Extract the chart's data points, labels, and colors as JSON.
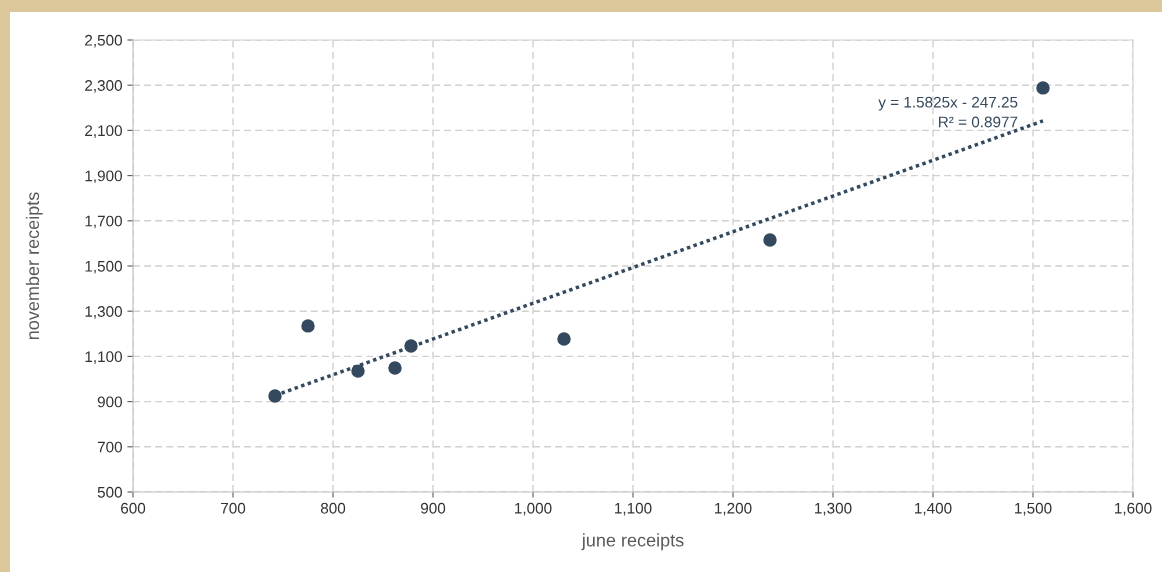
{
  "chart_data": {
    "type": "scatter",
    "xlabel": "june receipts",
    "ylabel": "november receipts",
    "xlim": [
      600,
      1600
    ],
    "xticks": [
      600,
      700,
      800,
      900,
      {
        "value": 1000,
        "label": "1,000"
      },
      {
        "value": 1100,
        "label": "1,100"
      },
      {
        "value": 1200,
        "label": "1,200"
      },
      {
        "value": 1300,
        "label": "1,300"
      },
      {
        "value": 1400,
        "label": "1,400"
      },
      {
        "value": 1500,
        "label": "1,500"
      },
      {
        "value": 1600,
        "label": "1,600"
      }
    ],
    "ylim": [
      500,
      2500
    ],
    "yticks": [
      500,
      700,
      900,
      {
        "value": 1100,
        "label": "1,100"
      },
      {
        "value": 1300,
        "label": "1,300"
      },
      {
        "value": 1500,
        "label": "1,500"
      },
      {
        "value": 1700,
        "label": "1,700"
      },
      {
        "value": 1900,
        "label": "1,900"
      },
      {
        "value": 2100,
        "label": "2,100"
      },
      {
        "value": 2300,
        "label": "2,300"
      },
      {
        "value": 2500,
        "label": "2,500"
      }
    ],
    "grid": true,
    "series": [
      {
        "marker": "circle",
        "color": "#34495e",
        "x": [
          742,
          775,
          825,
          862,
          878,
          1031,
          1237,
          1510
        ],
        "values": [
          925,
          1235,
          1035,
          1049,
          1146,
          1177,
          1615,
          2288
        ]
      },
      {
        "type": "line",
        "color": "#34495e",
        "line_style": "dotted",
        "marker": "none",
        "x": [
          742,
          1510
        ],
        "values": [
          927,
          2142
        ]
      }
    ],
    "annotations": [
      "y = 1.5825x - 247.25\nR² = 0.8977"
    ]
  }
}
